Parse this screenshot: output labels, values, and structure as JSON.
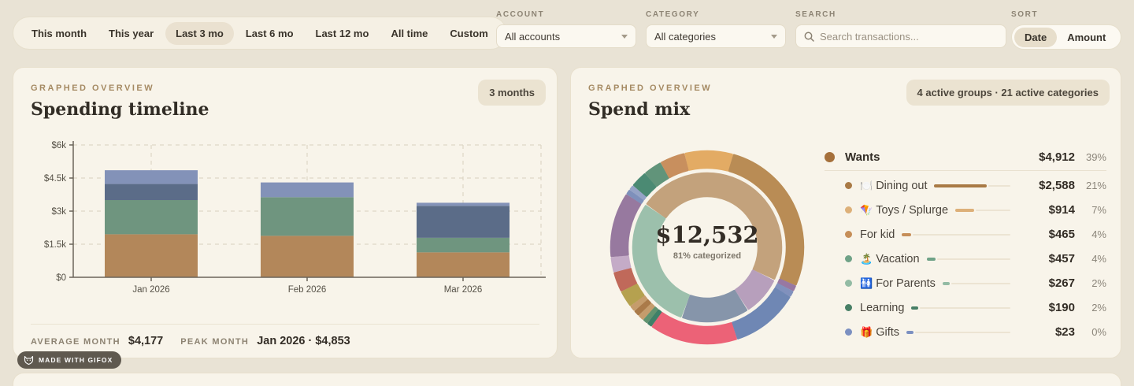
{
  "toolbar": {
    "time_ranges": [
      "This month",
      "This year",
      "Last 3 mo",
      "Last 6 mo",
      "Last 12 mo",
      "All time",
      "Custom"
    ],
    "selected_time_range": "Last 3 mo",
    "account": {
      "label": "ACCOUNT",
      "value": "All accounts"
    },
    "category": {
      "label": "CATEGORY",
      "value": "All categories"
    },
    "search": {
      "label": "SEARCH",
      "placeholder": "Search transactions..."
    },
    "sort": {
      "label": "SORT",
      "options": [
        "Date",
        "Amount"
      ],
      "selected": "Date"
    }
  },
  "timeline_card": {
    "eyebrow": "GRAPHED OVERVIEW",
    "title": "Spending timeline",
    "badge": "3 months",
    "stats": {
      "average_label": "AVERAGE MONTH",
      "average_value": "$4,177",
      "peak_label": "PEAK MONTH",
      "peak_value": "Jan 2026 · $4,853"
    }
  },
  "mix_card": {
    "eyebrow": "GRAPHED OVERVIEW",
    "title": "Spend mix",
    "badge": "4 active groups · 21 active categories"
  },
  "footer_badge": {
    "label": "MADE WITH GIFOX"
  },
  "chart_data": [
    {
      "type": "bar",
      "stacked": true,
      "title": "Spending timeline",
      "categories": [
        "Jan 2026",
        "Feb 2026",
        "Mar 2026"
      ],
      "series": [
        {
          "name": "group-tan",
          "color": "#b3875a",
          "values": [
            1950,
            1880,
            1130
          ]
        },
        {
          "name": "group-green",
          "color": "#6f957f",
          "values": [
            1550,
            1750,
            660
          ]
        },
        {
          "name": "group-slate",
          "color": "#5b6c88",
          "values": [
            730,
            0,
            1450
          ]
        },
        {
          "name": "group-periwinkle",
          "color": "#8392b8",
          "values": [
            623,
            670,
            139
          ]
        }
      ],
      "totals": [
        4853,
        4300,
        3379
      ],
      "ylim": [
        0,
        6000
      ],
      "yticks": [
        {
          "label": "$0",
          "value": 0
        },
        {
          "label": "$1.5k",
          "value": 1500
        },
        {
          "label": "$3k",
          "value": 3000
        },
        {
          "label": "$4.5k",
          "value": 4500
        },
        {
          "label": "$6k",
          "value": 6000
        }
      ],
      "grid": "dashed",
      "average_month": 4177,
      "peak_month": {
        "label": "Jan 2026",
        "value": 4853
      }
    },
    {
      "type": "donut",
      "title": "Spend mix",
      "center_value": "$12,532",
      "center_caption": "81% categorized",
      "rings": {
        "inner": {
          "start": -54,
          "gap": 2,
          "segments": [
            {
              "name": "group-tan",
              "color": "#c3a27c",
              "deg": 169
            },
            {
              "name": "group-mauve",
              "color": "#b79fbc",
              "deg": 29
            },
            {
              "name": "group-slate",
              "color": "#8695aa",
              "deg": 51
            },
            {
              "name": "group-seafoam",
              "color": "#9cc0ac",
              "deg": 103
            }
          ]
        },
        "outer": {
          "start": -13,
          "gap": 1.2,
          "segments": [
            {
              "name": "cat-amber",
              "color": "#e3ab64",
              "deg": 28
            },
            {
              "name": "cat-camel",
              "color": "#b98c55",
              "deg": 96.5
            },
            {
              "name": "cat-purple-sliver",
              "color": "#9878a2",
              "deg": 2.5
            },
            {
              "name": "cat-blue-sliver",
              "color": "#8191bd",
              "deg": 2.5
            },
            {
              "name": "cat-steel-blue",
              "color": "#6f87b4",
              "deg": 40
            },
            {
              "name": "cat-rose",
              "color": "#ec6277",
              "deg": 52
            },
            {
              "name": "cat-teal-sliver",
              "color": "#3f8068",
              "deg": 2
            },
            {
              "name": "cat-green-sliver",
              "color": "#62936f",
              "deg": 2
            },
            {
              "name": "cat-tan-sliver",
              "color": "#c59c6c",
              "deg": 2.5
            },
            {
              "name": "cat-brown-sliver",
              "color": "#aa7a49",
              "deg": 2.5
            },
            {
              "name": "cat-tan-sliver-2",
              "color": "#c59c6c",
              "deg": 2.5
            },
            {
              "name": "cat-olive",
              "color": "#b5a14f",
              "deg": 9
            },
            {
              "name": "cat-terracotta",
              "color": "#c0695a",
              "deg": 11
            },
            {
              "name": "cat-light-mauve",
              "color": "#c4abc7",
              "deg": 8
            },
            {
              "name": "cat-purple",
              "color": "#97799f",
              "deg": 38
            },
            {
              "name": "cat-blue-sliver-2",
              "color": "#7e90bb",
              "deg": 2
            },
            {
              "name": "cat-blue-sliver-3",
              "color": "#95a3c6",
              "deg": 2
            },
            {
              "name": "cat-teal",
              "color": "#4b8a73",
              "deg": 9
            },
            {
              "name": "cat-green",
              "color": "#61947a",
              "deg": 10
            },
            {
              "name": "cat-copper",
              "color": "#c88f5e",
              "deg": 14
            }
          ]
        }
      },
      "legend": [
        {
          "type": "group",
          "label": "Wants",
          "dot": "#a5703b",
          "value": "$4,912",
          "pct": "39%"
        },
        {
          "type": "item",
          "label": "Dining out",
          "emoji": "🍽️",
          "dot": "#a97a45",
          "share": 53,
          "value": "$2,588",
          "pct": "21%"
        },
        {
          "type": "item",
          "label": "Toys / Splurge",
          "emoji": "🪁",
          "dot": "#ddb079",
          "share": 19,
          "value": "$914",
          "pct": "7%"
        },
        {
          "type": "item",
          "label": "For kid",
          "emoji": "",
          "dot": "#c68e58",
          "share": 9.5,
          "value": "$465",
          "pct": "4%"
        },
        {
          "type": "item",
          "label": "Vacation",
          "emoji": "🏝️",
          "dot": "#6fa287",
          "share": 9.3,
          "value": "$457",
          "pct": "4%"
        },
        {
          "type": "item",
          "label": "For Parents",
          "emoji": "🚻",
          "dot": "#93bba4",
          "share": 5.4,
          "value": "$267",
          "pct": "2%"
        },
        {
          "type": "item",
          "label": "Learning",
          "emoji": "",
          "dot": "#487f66",
          "share": 3.9,
          "value": "$190",
          "pct": "2%"
        },
        {
          "type": "item",
          "label": "Gifts",
          "emoji": "🎁",
          "dot": "#7c90c1",
          "share": 0.5,
          "value": "$23",
          "pct": "0%"
        }
      ]
    }
  ]
}
